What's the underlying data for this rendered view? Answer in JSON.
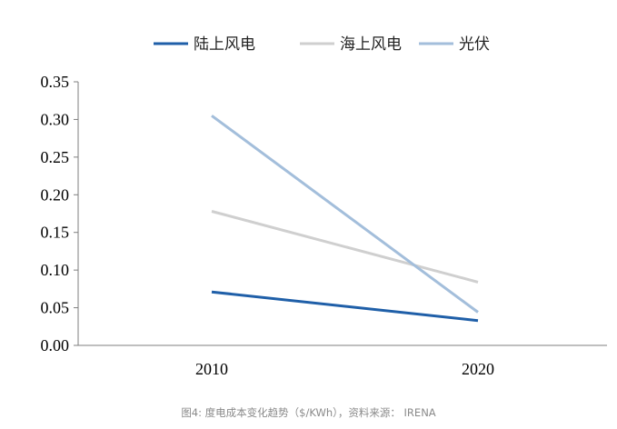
{
  "chart_data": {
    "type": "line",
    "categories": [
      "2010",
      "2020"
    ],
    "series": [
      {
        "name": "陆上风电",
        "values": [
          0.071,
          0.033
        ],
        "color": "#1f5fa8"
      },
      {
        "name": "海上风电",
        "values": [
          0.178,
          0.084
        ],
        "color": "#cfcfcf"
      },
      {
        "name": "光伏",
        "values": [
          0.305,
          0.044
        ],
        "color": "#a3bedb"
      }
    ],
    "ylim": [
      0,
      0.35
    ],
    "yticks": [
      "0.00",
      "0.05",
      "0.10",
      "0.15",
      "0.20",
      "0.25",
      "0.30",
      "0.35"
    ],
    "grid": false,
    "legend_position": "top"
  },
  "caption": "图4:  度电成本变化趋势（$/KWh），资料来源： IRENA"
}
